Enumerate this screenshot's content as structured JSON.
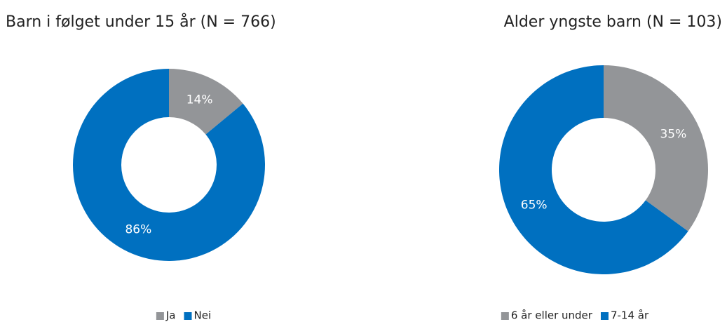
{
  "chart_data": [
    {
      "type": "donut",
      "title": "Barn i følget under 15 år (N = 766)",
      "categories": [
        "Ja",
        "Nei"
      ],
      "values": [
        14,
        86
      ],
      "value_labels": [
        "14%",
        "86%"
      ],
      "colors": [
        "#939598",
        "#0070c0"
      ],
      "legend": "bottom"
    },
    {
      "type": "donut",
      "title": "Alder yngste barn (N = 103)",
      "categories": [
        "6 år eller under",
        "7-14 år"
      ],
      "values": [
        35,
        65
      ],
      "value_labels": [
        "35%",
        "65%"
      ],
      "colors": [
        "#939598",
        "#0070c0"
      ],
      "legend": "bottom"
    }
  ]
}
